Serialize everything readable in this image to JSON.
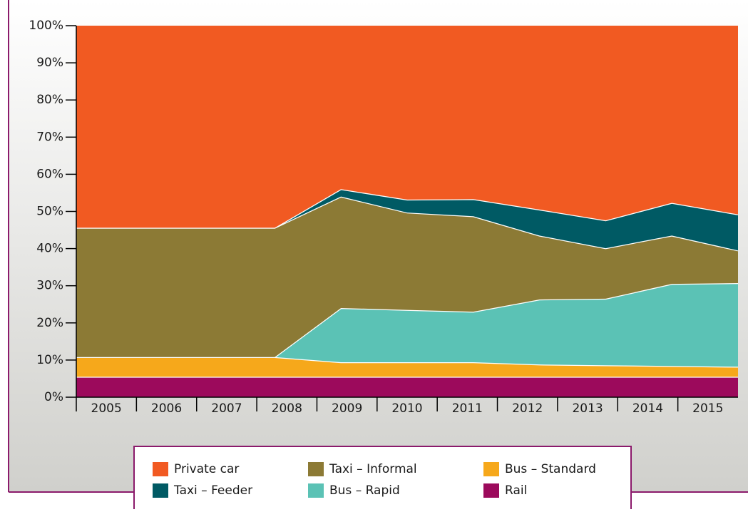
{
  "chart_data": {
    "type": "stacked_area",
    "categories": [
      "2005",
      "2006",
      "2007",
      "2008",
      "2009",
      "2010",
      "2011",
      "2012",
      "2013",
      "2014",
      "2015"
    ],
    "series": [
      {
        "name": "Rail",
        "color": "#9c0a5c",
        "values": [
          5.5,
          5.5,
          5.5,
          5.5,
          5.5,
          5.5,
          5.5,
          5.5,
          5.5,
          5.5,
          5.5
        ]
      },
      {
        "name": "Bus – Standard",
        "color": "#f6a81b",
        "values": [
          5.3,
          5.3,
          5.3,
          5.3,
          3.9,
          3.9,
          3.9,
          3.3,
          3.1,
          2.9,
          2.7
        ]
      },
      {
        "name": "Bus – Rapid",
        "color": "#5bc2b5",
        "values": [
          0,
          0,
          0,
          0,
          14.6,
          14.1,
          13.6,
          17.5,
          17.9,
          22.1,
          22.5
        ]
      },
      {
        "name": "Taxi – Informal",
        "color": "#8c7a35",
        "values": [
          34.8,
          34.8,
          34.8,
          34.8,
          30,
          26.2,
          25.7,
          17.2,
          13.6,
          13,
          8.8
        ]
      },
      {
        "name": "Taxi – Feeder",
        "color": "#005a64",
        "values": [
          0,
          0,
          0,
          0,
          2,
          3.5,
          4.6,
          7,
          7.5,
          8.8,
          9.7
        ]
      },
      {
        "name": "Private car",
        "color": "#f15a22",
        "values": [
          54.4,
          54.4,
          54.4,
          54.4,
          44,
          46.8,
          46.7,
          49.5,
          52.4,
          47.7,
          50.8
        ]
      }
    ],
    "ylim": [
      0,
      100
    ],
    "yticks": [
      {
        "value": 0,
        "label": "0%"
      },
      {
        "value": 10,
        "label": "10%"
      },
      {
        "value": 20,
        "label": "20%"
      },
      {
        "value": 30,
        "label": "30%"
      },
      {
        "value": 40,
        "label": "40%"
      },
      {
        "value": 50,
        "label": "50%"
      },
      {
        "value": 60,
        "label": "60%"
      },
      {
        "value": 70,
        "label": "70%"
      },
      {
        "value": 80,
        "label": "80%"
      },
      {
        "value": 90,
        "label": "90%"
      },
      {
        "value": 100,
        "label": "100%"
      }
    ]
  }
}
